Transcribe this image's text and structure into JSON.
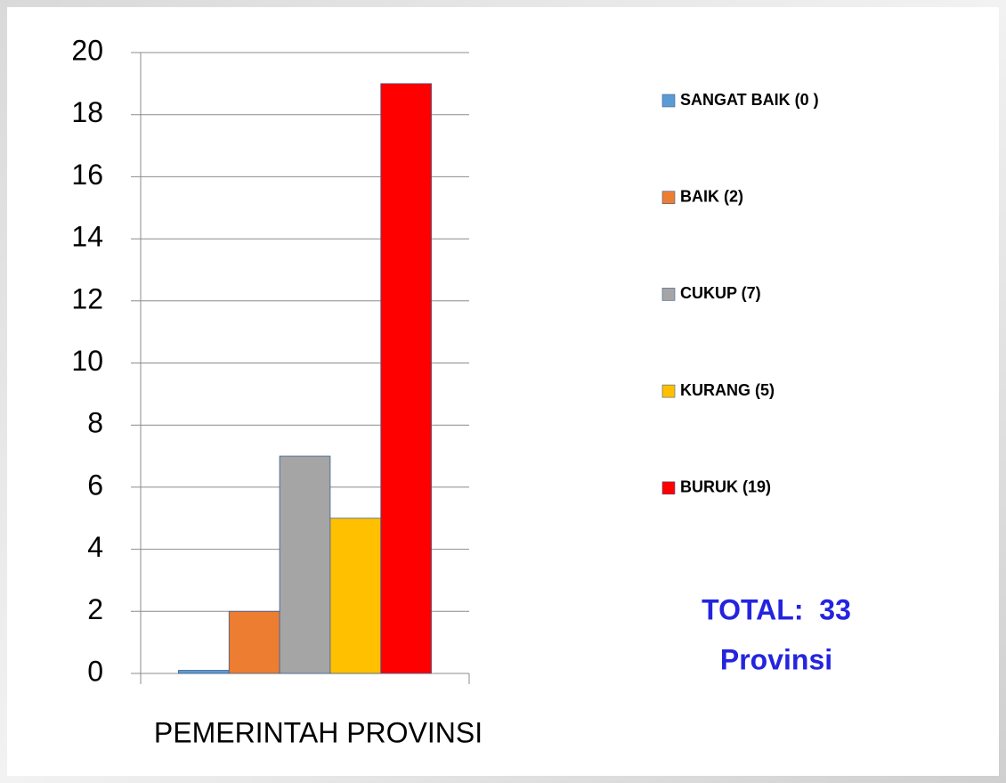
{
  "chart_data": {
    "type": "bar",
    "categories": [
      "PEMERINTAH PROVINSI"
    ],
    "series": [
      {
        "name": "SANGAT BAIK (0 )",
        "color": "#5b9bd5",
        "values": [
          0.1
        ]
      },
      {
        "name": "BAIK (2)",
        "color": "#ed7d31",
        "values": [
          2
        ]
      },
      {
        "name": "CUKUP (7)",
        "color": "#a5a5a5",
        "values": [
          7
        ]
      },
      {
        "name": "KURANG (5)",
        "color": "#ffc000",
        "values": [
          5
        ]
      },
      {
        "name": "BURUK (19)",
        "color": "#ff0000",
        "values": [
          19
        ]
      }
    ],
    "ylim": [
      0,
      20
    ],
    "yticks": [
      0,
      2,
      4,
      6,
      8,
      10,
      12,
      14,
      16,
      18,
      20
    ],
    "grid": true,
    "legend": "right",
    "annotations": [
      "TOTAL:  33",
      "Provinsi"
    ]
  }
}
